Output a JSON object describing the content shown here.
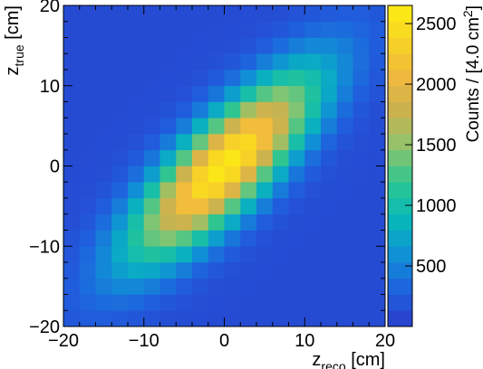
{
  "chart_data": {
    "type": "heatmap",
    "title": "",
    "xlabel": {
      "main": "z",
      "sub": "reco",
      "unit": " [cm]"
    },
    "ylabel": {
      "main": "z",
      "sub": "true",
      "unit": " [cm]"
    },
    "xlim": [
      -20,
      20
    ],
    "ylim": [
      -20,
      20
    ],
    "bin_size": 2,
    "x_ticks": [
      -20,
      -10,
      0,
      10,
      20
    ],
    "x_tick_labels": [
      "−20",
      "−10",
      "0",
      "10",
      "20"
    ],
    "y_ticks": [
      -20,
      -10,
      0,
      10,
      20
    ],
    "y_tick_labels": [
      "−20",
      "−10",
      "0",
      "10",
      "20"
    ],
    "colorbar": {
      "min": 0,
      "max": 2650,
      "ticks": [
        500,
        1000,
        1500,
        2000,
        2500
      ],
      "tick_labels": [
        "500",
        "1000",
        "1500",
        "2000",
        "2500"
      ],
      "label_prefix": "Counts / [4.0 cm",
      "label_sup": "2",
      "label_suffix": "]",
      "stops": [
        "#2a3dcc",
        "#1f60de",
        "#1090d6",
        "#08b8bb",
        "#2ac592",
        "#8cc56f",
        "#c9b24f",
        "#f0b83f",
        "#f7d325",
        "#fcee12"
      ]
    },
    "model": {
      "peak": 2600,
      "background": 120,
      "sigma_x": 8.0,
      "sigma_y": 8.0,
      "correlation": 0.8,
      "center": [
        0,
        0
      ]
    }
  }
}
